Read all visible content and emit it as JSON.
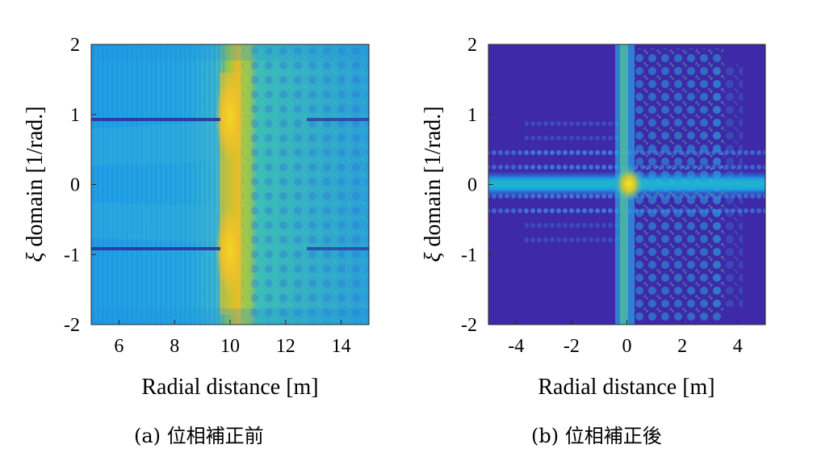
{
  "chart_data": [
    {
      "type": "heatmap",
      "caption_tag": "(a)",
      "caption_text": "位相補正前",
      "xlabel": "Radial distance [m]",
      "ylabel_symbol": "ξ",
      "ylabel_text": " domain [1/rad.]",
      "xlim": [
        5,
        15
      ],
      "ylim": [
        -2,
        2
      ],
      "xticks": [
        6,
        8,
        10,
        12,
        14
      ],
      "yticks": [
        -2,
        -1,
        0,
        1,
        2
      ],
      "colormap": "parula",
      "features": {
        "peak_radial_distance_m": 10,
        "dark_stripe_xi": [
          -0.9,
          0.9
        ],
        "peak_xi": [
          -1,
          1
        ]
      }
    },
    {
      "type": "heatmap",
      "caption_tag": "(b)",
      "caption_text": "位相補正後",
      "xlabel": "Radial distance [m]",
      "ylabel_symbol": "ξ",
      "ylabel_text": " domain [1/rad.]",
      "xlim": [
        -5,
        5
      ],
      "ylim": [
        -2,
        2
      ],
      "xticks": [
        -4,
        -2,
        0,
        2,
        4
      ],
      "yticks": [
        -2,
        -1,
        0,
        1,
        2
      ],
      "colormap": "parula",
      "features": {
        "peak_radial_distance_m": 0.2,
        "peak_xi": 0,
        "bright_band_xi": 0
      }
    }
  ]
}
